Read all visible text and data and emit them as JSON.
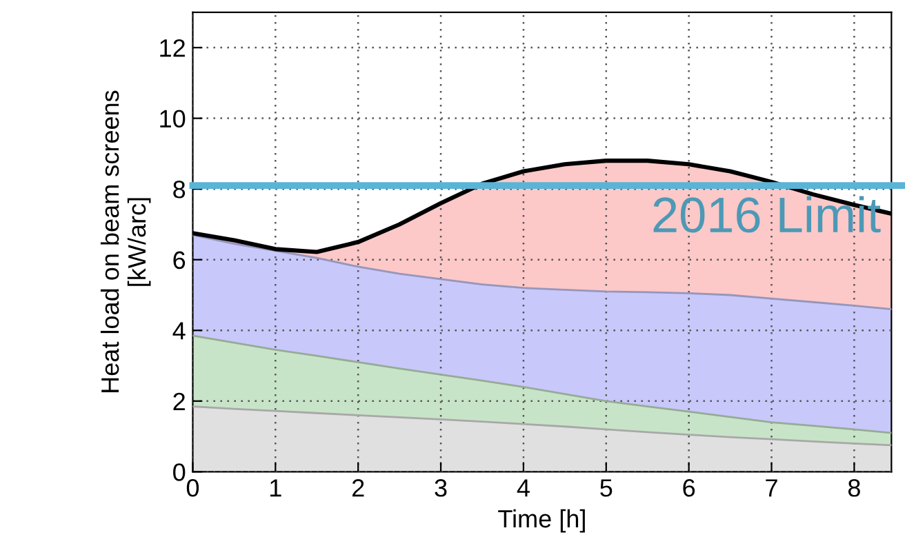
{
  "chart_data": {
    "type": "area",
    "stacked": true,
    "xlabel": "Time [h]",
    "ylabel": "Heat load on beam screens\n[kW/arc]",
    "x": [
      0,
      0.5,
      1,
      1.5,
      2,
      2.5,
      3,
      3.5,
      4,
      4.5,
      5,
      5.5,
      6,
      6.5,
      7,
      7.5,
      8,
      8.45
    ],
    "series": [
      {
        "color": "#e0e0e0",
        "values": [
          1.85,
          1.78,
          1.72,
          1.66,
          1.6,
          1.54,
          1.48,
          1.42,
          1.35,
          1.28,
          1.2,
          1.12,
          1.05,
          0.98,
          0.92,
          0.86,
          0.8,
          0.75
        ]
      },
      {
        "color": "#c8e4c8",
        "values": [
          2.0,
          1.87,
          1.73,
          1.62,
          1.5,
          1.38,
          1.27,
          1.16,
          1.05,
          0.92,
          0.8,
          0.73,
          0.65,
          0.57,
          0.48,
          0.44,
          0.4,
          0.35
        ]
      },
      {
        "color": "#c8c8fa",
        "values": [
          2.85,
          2.8,
          2.8,
          2.77,
          2.7,
          2.68,
          2.7,
          2.72,
          2.8,
          2.95,
          3.1,
          3.23,
          3.35,
          3.45,
          3.5,
          3.5,
          3.5,
          3.5
        ]
      },
      {
        "color": "#fcc8c8",
        "values": [
          0.05,
          0.1,
          0.05,
          0.17,
          0.7,
          1.4,
          2.15,
          2.85,
          3.3,
          3.55,
          3.7,
          3.72,
          3.65,
          3.5,
          3.3,
          3.05,
          2.85,
          2.7
        ]
      }
    ],
    "xlim": [
      0,
      8.45
    ],
    "ylim": [
      0,
      13
    ],
    "xticks": [
      0,
      1,
      2,
      3,
      4,
      5,
      6,
      7,
      8
    ],
    "yticks": [
      0,
      2,
      4,
      6,
      8,
      10,
      12
    ],
    "grid": true,
    "ref_lines": [
      {
        "axis": "y",
        "value": 8.1,
        "label": "2016 Limit",
        "color": "#5ab4d6"
      }
    ]
  }
}
